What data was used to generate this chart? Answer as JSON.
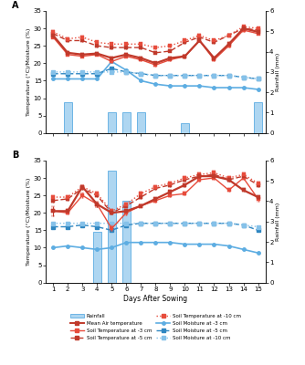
{
  "days": [
    1,
    2,
    3,
    4,
    5,
    6,
    7,
    8,
    9,
    10,
    11,
    12,
    13,
    14,
    15
  ],
  "panelA": {
    "rainfall_mm": [
      0,
      1.5,
      0,
      0,
      1.0,
      1.0,
      1.0,
      0,
      0,
      0.5,
      0,
      0,
      0,
      0,
      1.5
    ],
    "mean_air_temp": [
      28.0,
      23.0,
      22.5,
      22.8,
      21.5,
      22.5,
      21.5,
      20.0,
      21.5,
      22.0,
      26.5,
      21.5,
      25.5,
      30.0,
      29.0
    ],
    "mean_air_temp_err": [
      0.5,
      0.5,
      0.5,
      0.4,
      0.4,
      0.4,
      0.4,
      0.4,
      0.4,
      0.5,
      0.5,
      0.5,
      0.5,
      0.5,
      0.5
    ],
    "soil_temp_3": [
      27.5,
      22.5,
      22.0,
      22.5,
      20.5,
      22.0,
      21.0,
      19.5,
      21.0,
      22.0,
      26.5,
      21.0,
      25.0,
      29.5,
      28.5
    ],
    "soil_temp_3_err": [
      0.4,
      0.4,
      0.4,
      0.4,
      0.4,
      0.4,
      0.4,
      0.4,
      0.4,
      0.4,
      0.4,
      0.4,
      0.4,
      0.4,
      0.4
    ],
    "soil_temp_5": [
      28.5,
      26.5,
      26.5,
      25.0,
      24.5,
      24.5,
      24.5,
      23.0,
      23.5,
      26.0,
      27.5,
      26.0,
      28.0,
      30.0,
      29.5
    ],
    "soil_temp_5_err": [
      0.4,
      0.4,
      0.4,
      0.4,
      0.4,
      0.4,
      0.4,
      0.4,
      0.4,
      0.4,
      0.4,
      0.4,
      0.4,
      0.4,
      0.4
    ],
    "soil_temp_10": [
      29.0,
      27.0,
      27.5,
      26.0,
      25.5,
      25.5,
      25.5,
      24.5,
      25.0,
      26.5,
      28.0,
      26.5,
      28.0,
      30.5,
      30.0
    ],
    "soil_temp_10_err": [
      0.4,
      0.4,
      0.4,
      0.4,
      0.4,
      0.4,
      0.4,
      0.4,
      0.4,
      0.4,
      0.4,
      0.4,
      0.4,
      0.4,
      0.4
    ],
    "soil_moist_3": [
      15.5,
      15.5,
      15.5,
      15.5,
      20.5,
      18.0,
      15.0,
      14.0,
      13.5,
      13.5,
      13.5,
      13.0,
      13.0,
      13.0,
      12.5
    ],
    "soil_moist_5": [
      17.0,
      17.0,
      17.0,
      17.0,
      18.5,
      17.5,
      17.0,
      16.5,
      16.5,
      16.5,
      16.5,
      16.5,
      16.5,
      16.0,
      15.5
    ],
    "soil_moist_10": [
      17.5,
      17.5,
      17.5,
      17.5,
      17.5,
      17.5,
      17.0,
      16.5,
      16.5,
      16.5,
      16.5,
      16.5,
      16.5,
      16.0,
      15.5
    ]
  },
  "panelB": {
    "rainfall_mm": [
      0,
      0,
      0,
      2.5,
      5.5,
      4.0,
      0,
      0,
      0,
      0,
      0,
      0,
      0,
      0,
      0
    ],
    "mean_air_temp": [
      20.5,
      20.5,
      27.5,
      22.5,
      20.0,
      20.5,
      22.0,
      24.0,
      26.0,
      28.0,
      30.5,
      30.5,
      29.5,
      26.5,
      24.5
    ],
    "mean_air_temp_err": [
      1.5,
      0.5,
      0.5,
      0.8,
      0.5,
      0.5,
      0.5,
      0.5,
      0.5,
      0.5,
      0.5,
      0.5,
      0.5,
      0.5,
      0.5
    ],
    "soil_temp_3": [
      20.5,
      20.0,
      25.0,
      22.5,
      15.5,
      20.0,
      22.0,
      23.5,
      25.0,
      25.5,
      29.5,
      30.0,
      26.5,
      30.0,
      24.0
    ],
    "soil_temp_3_err": [
      1.2,
      0.5,
      0.8,
      0.8,
      0.8,
      0.8,
      0.5,
      0.5,
      0.5,
      0.5,
      0.5,
      0.5,
      0.5,
      0.5,
      0.8
    ],
    "soil_temp_5": [
      23.5,
      24.0,
      27.0,
      25.0,
      20.0,
      22.0,
      24.5,
      27.0,
      28.0,
      29.5,
      30.5,
      31.0,
      29.5,
      30.5,
      28.0
    ],
    "soil_temp_5_err": [
      0.5,
      0.5,
      0.5,
      0.5,
      0.5,
      0.5,
      0.5,
      0.5,
      0.5,
      0.5,
      0.5,
      0.5,
      0.5,
      0.5,
      0.5
    ],
    "soil_temp_10": [
      24.5,
      24.5,
      27.5,
      25.5,
      20.5,
      22.5,
      25.5,
      27.5,
      28.5,
      30.0,
      31.0,
      31.5,
      30.0,
      31.0,
      28.5
    ],
    "soil_temp_10_err": [
      0.5,
      0.5,
      0.5,
      0.5,
      0.5,
      0.5,
      0.5,
      0.5,
      0.5,
      0.5,
      0.5,
      0.5,
      0.5,
      0.5,
      0.5
    ],
    "soil_moist_3": [
      10.0,
      10.5,
      10.0,
      9.5,
      10.0,
      11.5,
      11.5,
      11.5,
      11.5,
      11.0,
      11.0,
      11.0,
      10.5,
      9.5,
      8.5
    ],
    "soil_moist_5": [
      16.0,
      16.0,
      16.5,
      16.0,
      15.0,
      16.5,
      17.0,
      17.0,
      17.0,
      17.0,
      17.0,
      17.0,
      17.0,
      16.5,
      15.0
    ],
    "soil_moist_10": [
      17.0,
      17.0,
      17.0,
      17.0,
      17.0,
      17.0,
      17.0,
      17.0,
      17.0,
      17.0,
      17.0,
      17.0,
      17.0,
      16.5,
      16.0
    ]
  },
  "colors": {
    "mean_air_temp": "#c0392b",
    "soil_temp_3": "#e74c3c",
    "soil_temp_5": "#c0392b",
    "soil_temp_10": "#e74c3c",
    "soil_moist_3": "#5dade2",
    "soil_moist_5": "#2e86c1",
    "soil_moist_10": "#85c1e9",
    "rainfall_face": "#aed6f1",
    "rainfall_edge": "#5dade2"
  },
  "ylim_left": [
    0,
    35
  ],
  "ylim_right": [
    0,
    6
  ],
  "yticks_left": [
    0,
    5,
    10,
    15,
    20,
    25,
    30,
    35
  ],
  "yticks_right": [
    0,
    1,
    2,
    3,
    4,
    5,
    6
  ],
  "xlim": [
    0.5,
    15.5
  ],
  "xticks": [
    1,
    2,
    3,
    4,
    5,
    6,
    7,
    8,
    9,
    10,
    11,
    12,
    13,
    14,
    15
  ]
}
